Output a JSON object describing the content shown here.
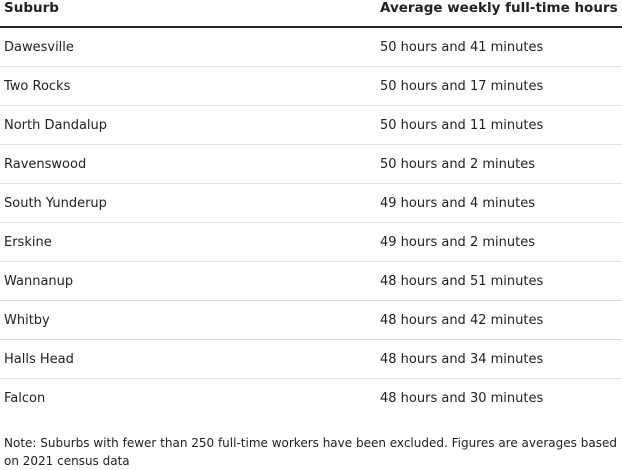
{
  "table": {
    "columns": [
      "Suburb",
      "Average weekly full-time hours"
    ],
    "rows": [
      [
        "Dawesville",
        "50 hours and 41 minutes"
      ],
      [
        "Two Rocks",
        "50 hours and 17 minutes"
      ],
      [
        "North Dandalup",
        "50 hours and 11 minutes"
      ],
      [
        "Ravenswood",
        "50 hours and 2 minutes"
      ],
      [
        "South Yunderup",
        "49 hours and 4 minutes"
      ],
      [
        "Erskine",
        "49 hours and 2 minutes"
      ],
      [
        "Wannanup",
        "48 hours and 51 minutes"
      ],
      [
        "Whitby",
        "48 hours and 42 minutes"
      ],
      [
        "Halls Head",
        "48 hours and 34 minutes"
      ],
      [
        "Falcon",
        "48 hours and 30 minutes"
      ]
    ],
    "note": "Note: Suburbs with fewer than 250 full-time workers have been excluded. Figures are averages based on 2021 census data"
  }
}
